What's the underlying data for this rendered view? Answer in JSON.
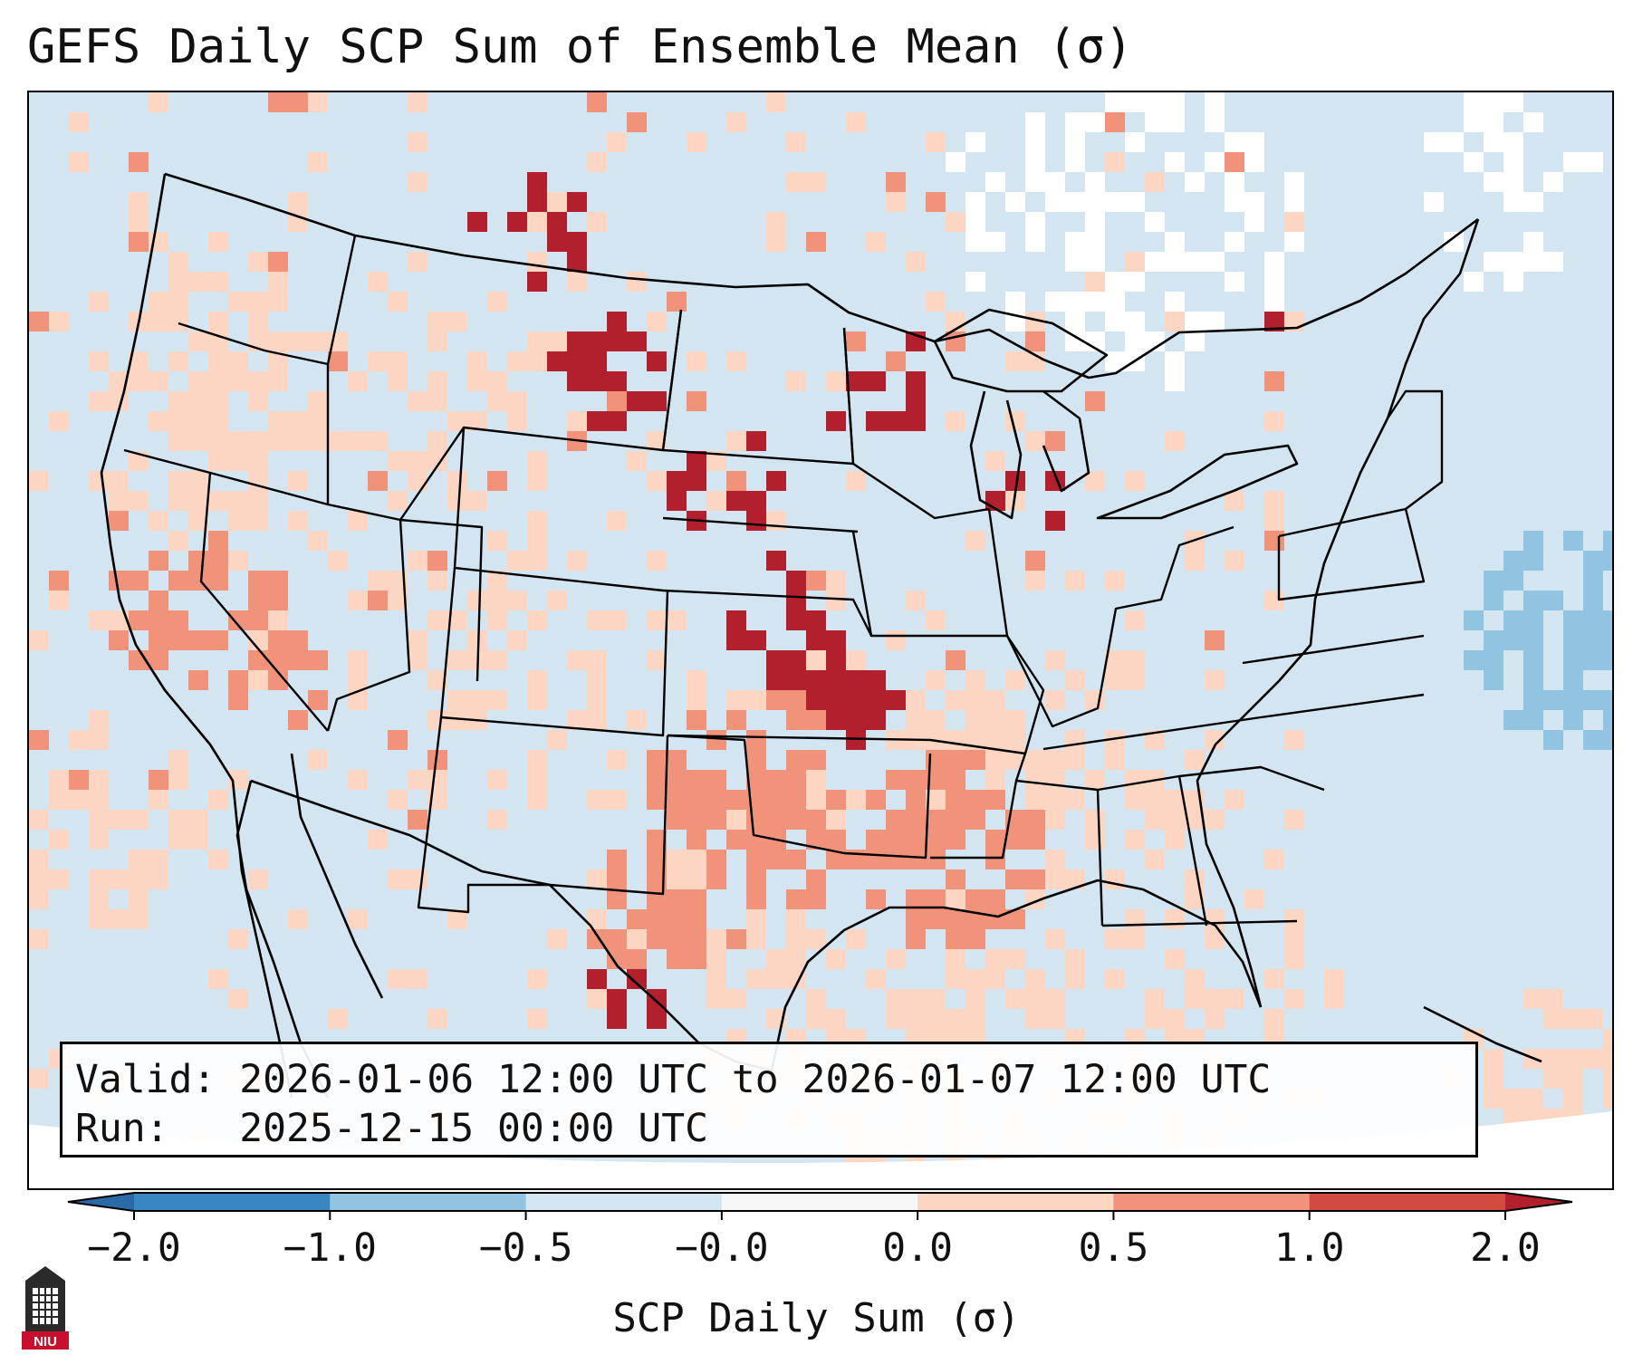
{
  "title": "GEFS Daily SCP Sum of Ensemble Mean (σ)",
  "info": {
    "valid_label": "Valid:",
    "valid_value": "2026-01-06 12:00 UTC to 2026-01-07 12:00 UTC",
    "run_label": "Run:",
    "run_value": "2025-12-15 00:00 UTC"
  },
  "colorbar": {
    "label": "SCP Daily Sum (σ)",
    "ticks": [
      "−2.0",
      "−1.0",
      "−0.5",
      "−0.0",
      "0.0",
      "0.5",
      "1.0",
      "2.0"
    ],
    "bin_colors": [
      "#3a86c2",
      "#90c4e0",
      "#d2e5f1",
      "#f7f7f7",
      "#fcd6c2",
      "#f0937a",
      "#d24b40"
    ],
    "under_color": "#2b6aa8",
    "over_color": "#b21f2d"
  },
  "map_colors": {
    "land_base": "#d2e5f1",
    "ocean_base": "#d2e5f1",
    "neutral": "#ffffff",
    "light_blue": "#90c4e0",
    "light_red": "#fcd6c2",
    "mid_red": "#f0937a",
    "red": "#d24b40",
    "dark_red": "#b21f2d",
    "outline": "#000000"
  },
  "logo": {
    "text": "NIU",
    "color": "#c8102e"
  }
}
